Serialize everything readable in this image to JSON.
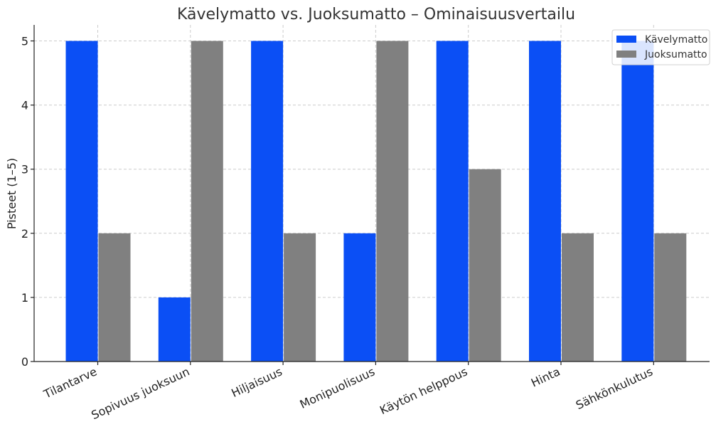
{
  "chart_data": {
    "type": "bar",
    "title": "Kävelymatto vs. Juoksumatto – Ominaisuusvertailu",
    "xlabel": "",
    "ylabel": "Pisteet (1–5)",
    "ylim": [
      0,
      5.25
    ],
    "yticks": [
      0,
      1,
      2,
      3,
      4,
      5
    ],
    "grid": true,
    "legend_position": "top-right",
    "categories": [
      "Tilantarve",
      "Sopivuus juoksuun",
      "Hiljaisuus",
      "Monipuolisuus",
      "Käytön helppous",
      "Hinta",
      "Sähkönkulutus"
    ],
    "series": [
      {
        "name": "Kävelymatto",
        "color": "#0b4ff5",
        "values": [
          5,
          1,
          5,
          2,
          5,
          5,
          5
        ]
      },
      {
        "name": "Juoksumatto",
        "color": "#808080",
        "values": [
          2,
          5,
          2,
          5,
          3,
          2,
          2
        ]
      }
    ]
  }
}
